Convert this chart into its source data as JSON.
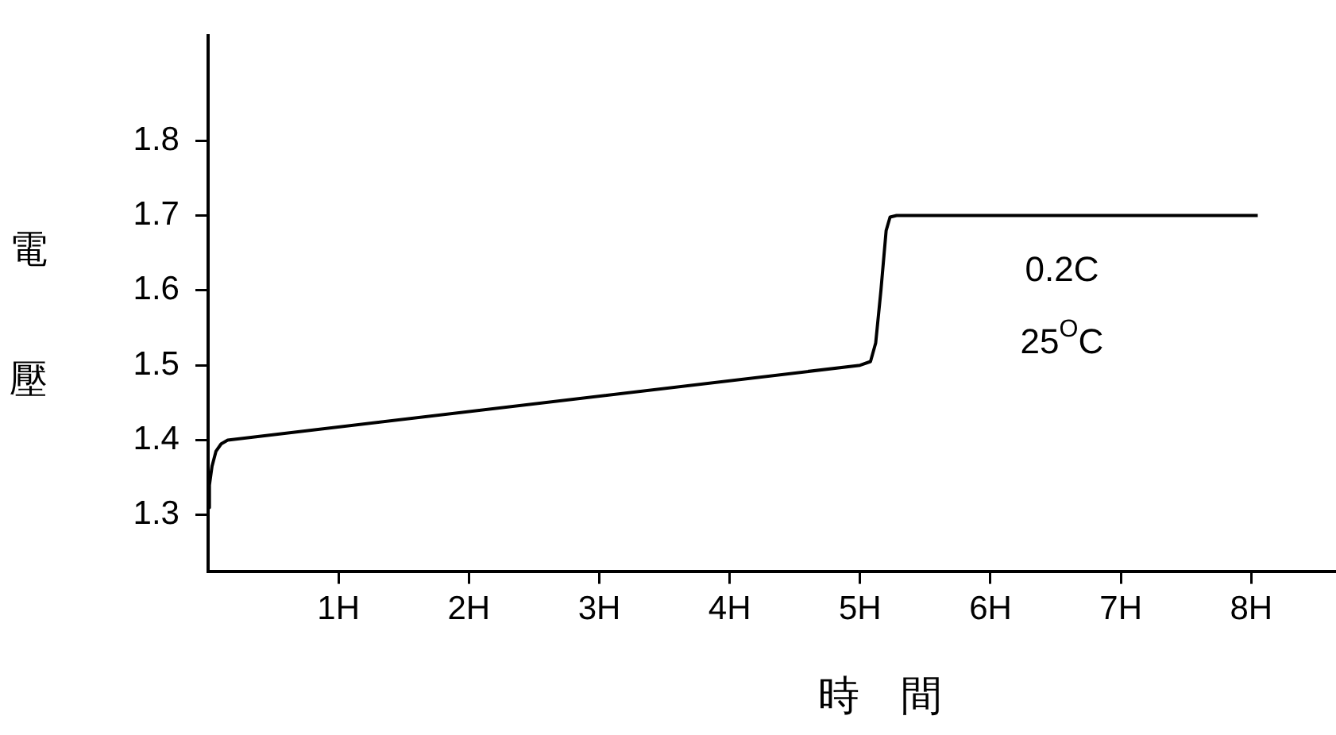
{
  "chart_data": {
    "type": "line",
    "xlabel": "時　間",
    "ylabel": "電壓",
    "x": [
      0,
      0.01,
      0.03,
      0.06,
      0.1,
      0.15,
      5.0,
      5.08,
      5.12,
      5.16,
      5.2,
      5.23,
      5.28,
      8.05
    ],
    "series": [
      {
        "color": "#000000",
        "values": [
          1.31,
          1.34,
          1.365,
          1.385,
          1.395,
          1.4,
          1.5,
          1.505,
          1.53,
          1.6,
          1.68,
          1.698,
          1.7,
          1.7
        ]
      }
    ],
    "xlim": [
      0,
      8.65
    ],
    "ylim": [
      1.225,
      1.94
    ],
    "xticks": [
      {
        "value": 1,
        "label": "1H"
      },
      {
        "value": 2,
        "label": "2H"
      },
      {
        "value": 3,
        "label": "3H"
      },
      {
        "value": 4,
        "label": "4H"
      },
      {
        "value": 5,
        "label": "5H"
      },
      {
        "value": 6,
        "label": "6H"
      },
      {
        "value": 7,
        "label": "7H"
      },
      {
        "value": 8,
        "label": "8H"
      }
    ],
    "yticks": [
      1.3,
      1.4,
      1.5,
      1.6,
      1.7,
      1.8
    ],
    "annotations": [
      "0.2C",
      "25$^{O}$C"
    ],
    "grid": false,
    "legend": false,
    "marker": "none",
    "line_style": "solid"
  }
}
